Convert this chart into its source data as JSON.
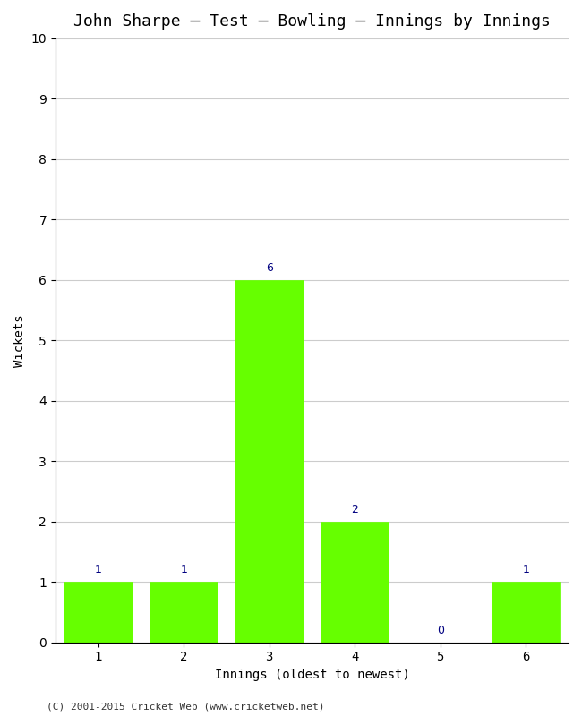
{
  "title": "John Sharpe – Test – Bowling – Innings by Innings",
  "xlabel": "Innings (oldest to newest)",
  "ylabel": "Wickets",
  "categories": [
    "1",
    "2",
    "3",
    "4",
    "5",
    "6"
  ],
  "values": [
    1,
    1,
    6,
    2,
    0,
    1
  ],
  "bar_color": "#66ff00",
  "bar_edge_color": "#66ff00",
  "annotation_color": "#000080",
  "ylim": [
    0,
    10
  ],
  "yticks": [
    0,
    1,
    2,
    3,
    4,
    5,
    6,
    7,
    8,
    9,
    10
  ],
  "title_fontsize": 13,
  "axis_label_fontsize": 10,
  "tick_fontsize": 10,
  "annotation_fontsize": 9,
  "background_color": "#ffffff",
  "grid_color": "#cccccc",
  "footer": "(C) 2001-2015 Cricket Web (www.cricketweb.net)"
}
